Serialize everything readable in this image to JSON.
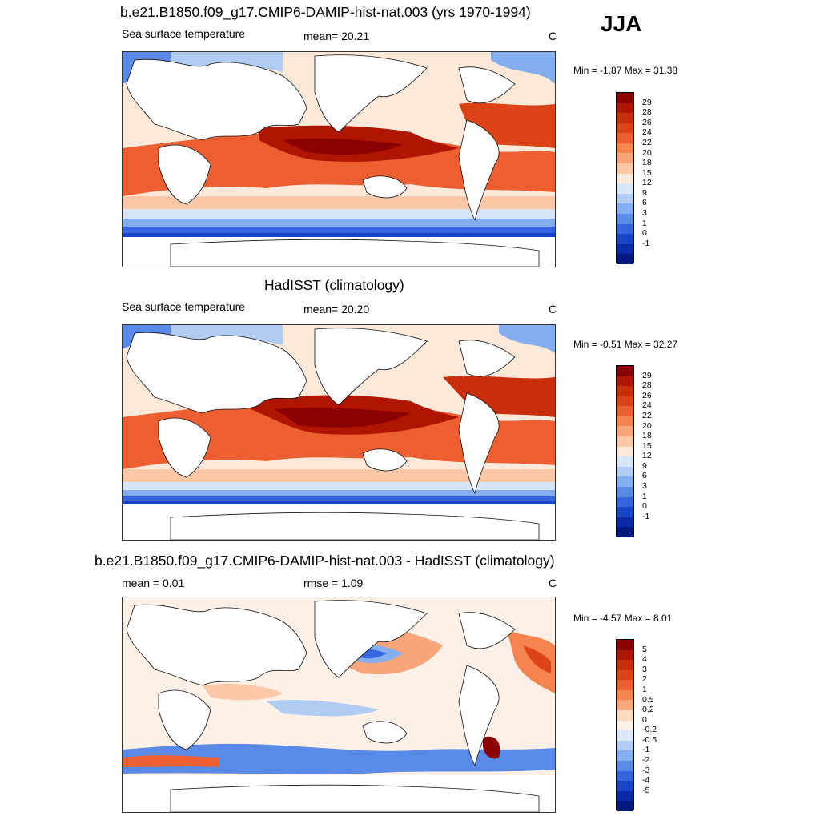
{
  "season": "JJA",
  "panels": [
    {
      "title": "b.e21.B1850.f09_g17.CMIP6-DAMIP-hist-nat.003 (yrs 1970-1994)",
      "left_label": "Sea surface temperature",
      "mid_label": "mean=  20.21",
      "unit": "C",
      "minmax": "Min =  -1.87 Max =  31.38",
      "colorbar": {
        "labels": [
          "29",
          "28",
          "26",
          "24",
          "22",
          "20",
          "18",
          "15",
          "12",
          "9",
          "6",
          "3",
          "1",
          "0",
          "-1"
        ],
        "colors": [
          "#8b0000",
          "#b01500",
          "#c92e0c",
          "#dc4418",
          "#ed5f30",
          "#f5844f",
          "#f9a57a",
          "#fcc8a8",
          "#fde9da",
          "#d6e6f8",
          "#b1ccf3",
          "#85aef0",
          "#5a8ae8",
          "#3566e0",
          "#1844c8",
          "#082aa8",
          "#001880"
        ]
      }
    },
    {
      "title": "HadISST (climatology)",
      "left_label": "Sea surface temperature",
      "mid_label": "mean=  20.20",
      "unit": "C",
      "minmax": "Min =  -0.51 Max =  32.27",
      "colorbar": {
        "labels": [
          "29",
          "28",
          "26",
          "24",
          "22",
          "20",
          "18",
          "15",
          "12",
          "9",
          "6",
          "3",
          "1",
          "0",
          "-1"
        ],
        "colors": [
          "#8b0000",
          "#b01500",
          "#c92e0c",
          "#dc4418",
          "#ed5f30",
          "#f5844f",
          "#f9a57a",
          "#fcc8a8",
          "#fde9da",
          "#d6e6f8",
          "#b1ccf3",
          "#85aef0",
          "#5a8ae8",
          "#3566e0",
          "#1844c8",
          "#082aa8",
          "#001880"
        ]
      }
    },
    {
      "title": "b.e21.B1850.f09_g17.CMIP6-DAMIP-hist-nat.003 - HadISST (climatology)",
      "left_label": "mean =   0.01",
      "mid_label": "rmse =   1.09",
      "unit": "C",
      "minmax": "Min =  -4.57 Max =   8.01",
      "colorbar": {
        "labels": [
          "5",
          "4",
          "3",
          "2",
          "1",
          "0.5",
          "0.2",
          "0",
          "-0.2",
          "-0.5",
          "-1",
          "-2",
          "-3",
          "-4",
          "-5"
        ],
        "colors": [
          "#8b0000",
          "#b01500",
          "#c92e0c",
          "#dc4418",
          "#ed5f30",
          "#f5844f",
          "#f9a57a",
          "#fcd8c0",
          "#fdf0e6",
          "#dce8f8",
          "#b1ccf3",
          "#85aef0",
          "#5a8ae8",
          "#3566e0",
          "#1844c8",
          "#082aa8",
          "#001880"
        ]
      }
    }
  ]
}
